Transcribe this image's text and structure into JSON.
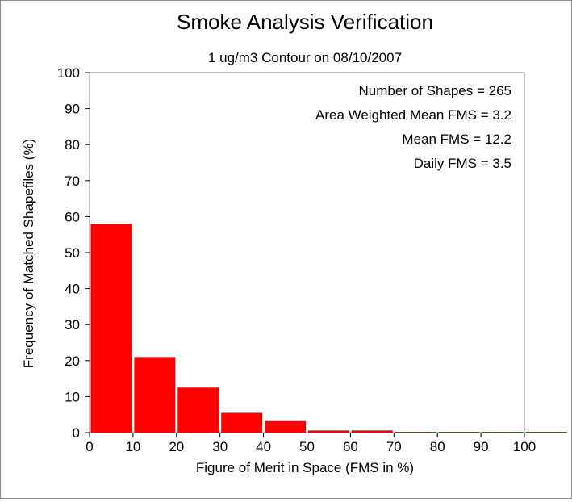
{
  "chart_data": {
    "type": "bar",
    "title": "Smoke Analysis Verification",
    "subtitle": "1 ug/m3 Contour on 08/10/2007",
    "xlabel": "Figure of Merit in Space (FMS in %)",
    "ylabel": "Frequency of Matched Shapefiles (%)",
    "xlim": [
      0,
      110
    ],
    "ylim": [
      0,
      100
    ],
    "x_ticks": [
      0,
      10,
      20,
      30,
      40,
      50,
      60,
      70,
      80,
      90,
      100
    ],
    "y_ticks": [
      0,
      10,
      20,
      30,
      40,
      50,
      60,
      70,
      80,
      90,
      100
    ],
    "bins": [
      {
        "start": 0,
        "end": 10,
        "value": 58
      },
      {
        "start": 10,
        "end": 20,
        "value": 21
      },
      {
        "start": 20,
        "end": 30,
        "value": 12.5
      },
      {
        "start": 30,
        "end": 40,
        "value": 5.5
      },
      {
        "start": 40,
        "end": 50,
        "value": 3.2
      },
      {
        "start": 50,
        "end": 60,
        "value": 0.6
      },
      {
        "start": 60,
        "end": 70,
        "value": 0.6
      },
      {
        "start": 70,
        "end": 80,
        "value": 0.1
      },
      {
        "start": 80,
        "end": 90,
        "value": 0.1
      },
      {
        "start": 90,
        "end": 100,
        "value": 0.1
      },
      {
        "start": 100,
        "end": 110,
        "value": 0.1
      }
    ],
    "bar_color": "#ff0000",
    "grid": false,
    "annotations": [
      "Number of Shapes = 265",
      "Area Weighted Mean FMS = 3.2",
      "Mean FMS = 12.2",
      "Daily FMS = 3.5"
    ]
  }
}
